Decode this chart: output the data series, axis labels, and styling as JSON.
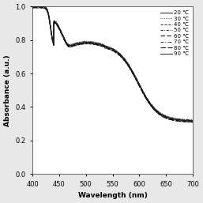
{
  "title": "",
  "xlabel": "Wavelength (nm)",
  "ylabel": "Absorbance (a.u.)",
  "xlim": [
    400,
    700
  ],
  "ylim": [
    0.0,
    1.0
  ],
  "xticks": [
    400,
    450,
    500,
    550,
    600,
    650,
    700
  ],
  "yticks": [
    0.0,
    0.2,
    0.4,
    0.6,
    0.8,
    1.0
  ],
  "temperatures": [
    20,
    30,
    40,
    50,
    60,
    70,
    80,
    90
  ],
  "line_styles": [
    {
      "linestyle": "-",
      "linewidth": 0.7,
      "color": "#1a1a1a",
      "dashes": null
    },
    {
      "linestyle": ":",
      "linewidth": 0.7,
      "color": "#333333",
      "dashes": [
        0.8,
        1.5
      ]
    },
    {
      "linestyle": "--",
      "linewidth": 0.7,
      "color": "#333333",
      "dashes": [
        3.5,
        1.5
      ]
    },
    {
      "linestyle": "-.",
      "linewidth": 0.7,
      "color": "#333333",
      "dashes": [
        3.5,
        1.5,
        0.8,
        1.5
      ]
    },
    {
      "linestyle": "--",
      "linewidth": 0.8,
      "color": "#111111",
      "dashes": [
        5,
        2
      ]
    },
    {
      "linestyle": "-.",
      "linewidth": 0.7,
      "color": "#333333",
      "dashes": [
        4,
        1.5,
        0.8,
        1.5,
        0.8,
        1.5
      ]
    },
    {
      "linestyle": "--",
      "linewidth": 0.8,
      "color": "#111111",
      "dashes": [
        6,
        2
      ]
    },
    {
      "linestyle": "-",
      "linewidth": 0.7,
      "color": "#1a1a1a",
      "dashes": null
    }
  ],
  "legend_labels": [
    "20 ℃",
    "30 ℃",
    "40 ℃",
    "50 ℃",
    "60 ℃",
    "70 ℃",
    "80 ℃",
    "90 ℃"
  ],
  "background_color": "#e8e8e8",
  "plot_bg_color": "#ffffff",
  "temp_offsets": [
    0.0,
    0.008,
    -0.008,
    0.004,
    -0.004,
    0.006,
    -0.006,
    0.002
  ]
}
